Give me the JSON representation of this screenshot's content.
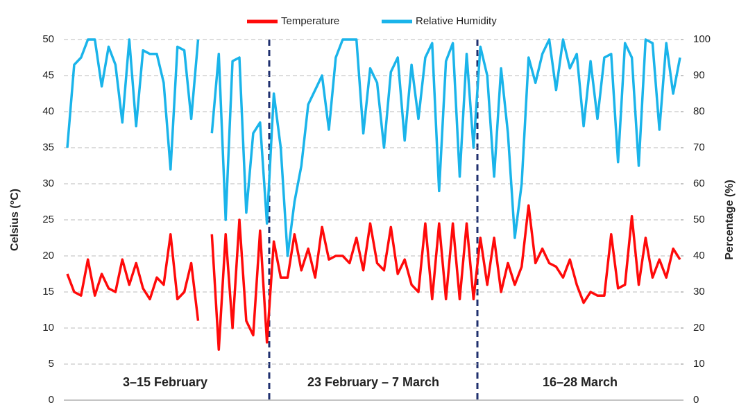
{
  "chart_data": {
    "type": "line",
    "axis_label_y": "Celsius (°C)",
    "axis_label_y2": "Percentage (%)",
    "annotations": [
      "3–15 February",
      "23 February – 7 March",
      "16–28 March"
    ],
    "categories": [
      null,
      null,
      null,
      null,
      null,
      null,
      null,
      null,
      null,
      null,
      null,
      null,
      null,
      null,
      null,
      null,
      null,
      null,
      null,
      null,
      null,
      null,
      null,
      null,
      null,
      null,
      null,
      null,
      null,
      null,
      null,
      null,
      null,
      null,
      null,
      null,
      null,
      null,
      null,
      null,
      null,
      null,
      null,
      null,
      null,
      null,
      null,
      null,
      null,
      null,
      null,
      null,
      null,
      null,
      null,
      null,
      null,
      null,
      null,
      null,
      null,
      null,
      null,
      null,
      null,
      null,
      null,
      null,
      null,
      null,
      null,
      null,
      null,
      null,
      null,
      null,
      null,
      null,
      null,
      null,
      null,
      null,
      null,
      null,
      null,
      null,
      null,
      null,
      null,
      null
    ],
    "series": [
      {
        "name": "Temperature",
        "color": "#ff0a0a",
        "values": [
          17.5,
          15,
          14.5,
          19.5,
          14.5,
          17.5,
          15.5,
          15,
          19.5,
          16,
          19,
          15.5,
          14,
          17,
          16,
          23,
          14,
          15,
          19,
          11,
          null,
          23,
          7,
          23,
          10,
          25,
          11,
          9,
          23.5,
          8,
          22,
          17,
          17,
          23,
          18,
          21,
          17,
          24,
          19.5,
          20,
          20,
          19,
          22.5,
          18,
          24.5,
          19,
          18,
          24,
          17.5,
          19.5,
          16,
          15,
          24.5,
          14,
          24.5,
          14,
          24.5,
          14,
          24.5,
          14,
          22.5,
          16,
          22.5,
          15,
          19,
          16,
          18.5,
          27,
          19,
          21,
          19,
          18.5,
          17,
          19.5,
          16,
          13.5,
          15,
          14.5,
          14.5,
          23,
          15.5,
          16,
          25.5,
          16,
          22.5,
          17,
          19.5,
          17,
          21,
          19.5
        ]
      },
      {
        "name": "Relative Humidity",
        "color": "#1ab4ea",
        "axis": "y2",
        "values": [
          70,
          93,
          95,
          100,
          100,
          87,
          98,
          93,
          77,
          100,
          76,
          97,
          96,
          96,
          88,
          64,
          98,
          97,
          78,
          100,
          null,
          74,
          96,
          50,
          94,
          95,
          52,
          74,
          77,
          49,
          85,
          70,
          40,
          55,
          65,
          82,
          86,
          90,
          75,
          95,
          100,
          100,
          100,
          74,
          92,
          88,
          70,
          91,
          95,
          72,
          93,
          78,
          95,
          99,
          58,
          94,
          99,
          62,
          96,
          70,
          98,
          90,
          62,
          92,
          74,
          45,
          60,
          95,
          88,
          96,
          100,
          86,
          100,
          92,
          96,
          76,
          94,
          78,
          95,
          96,
          66,
          99,
          95,
          65,
          100,
          99,
          75,
          99,
          85,
          95
        ]
      }
    ],
    "ylim": [
      0,
      50
    ],
    "yticks": [
      0,
      5,
      10,
      15,
      20,
      25,
      30,
      35,
      40,
      45,
      50
    ],
    "y2lim": [
      0,
      100
    ],
    "y2ticks": [
      0,
      10,
      20,
      30,
      40,
      50,
      60,
      70,
      80,
      90,
      100
    ],
    "grid": true,
    "legend": "top"
  }
}
